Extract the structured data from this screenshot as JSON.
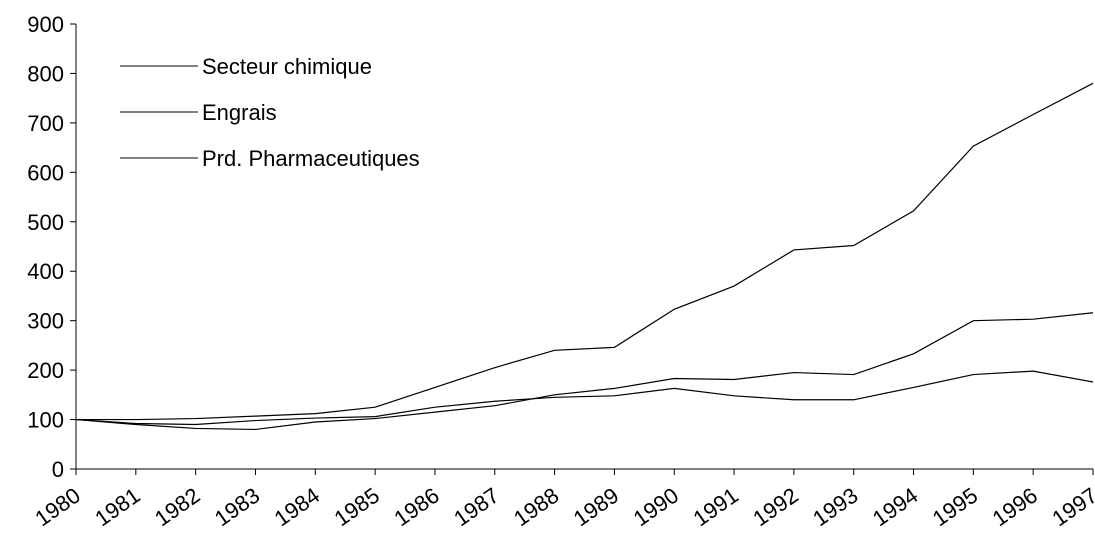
{
  "chart_data": {
    "type": "line",
    "x": [
      "1980",
      "1981",
      "1982",
      "1983",
      "1984",
      "1985",
      "1986",
      "1987",
      "1988",
      "1989",
      "1990",
      "1991",
      "1992",
      "1993",
      "1994",
      "1995",
      "1996",
      "1997"
    ],
    "series": [
      {
        "name": "Secteur chimique",
        "color": "#000000",
        "values": [
          100,
          90,
          82,
          80,
          95,
          102,
          115,
          128,
          150,
          163,
          183,
          181,
          195,
          191,
          233,
          300,
          303,
          316
        ]
      },
      {
        "name": "Engrais",
        "color": "#000000",
        "values": [
          100,
          92,
          90,
          98,
          103,
          106,
          125,
          137,
          145,
          148,
          163,
          148,
          140,
          140,
          165,
          191,
          198,
          176
        ]
      },
      {
        "name": "Prd. Pharmaceutiques",
        "color": "#000000",
        "values": [
          100,
          100,
          102,
          107,
          112,
          125,
          165,
          205,
          240,
          246,
          323,
          370,
          443,
          452,
          522,
          653,
          717,
          780
        ]
      }
    ],
    "ylim": [
      0,
      900
    ],
    "yticks": [
      0,
      100,
      200,
      300,
      400,
      500,
      600,
      700,
      800,
      900
    ],
    "grid": false,
    "legend": "upper left"
  }
}
